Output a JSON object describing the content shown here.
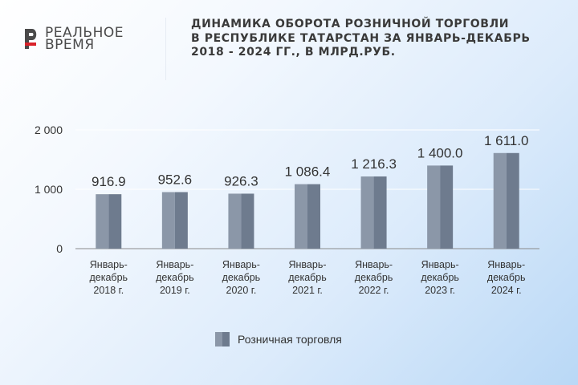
{
  "logo": {
    "line1": "РЕАЛЬНОЕ",
    "line2": "ВРЕМЯ"
  },
  "title_lines": [
    "Динамика оборота розничной торговли",
    "в Республике Татарстан за январь-декабрь",
    "2018 - 2024 гг., в млрд.руб."
  ],
  "colors": {
    "bar_light": "#8b97a8",
    "bar_dark": "#6e7b8e",
    "axis": "#8a8a8a",
    "grid": "#ffffff",
    "logo_red": "#d9222a"
  },
  "chart_data": {
    "type": "bar",
    "categories": [
      [
        "Январь-",
        "декабрь",
        "2018 г."
      ],
      [
        "Январь-",
        "декабрь",
        "2019 г."
      ],
      [
        "Январь-",
        "декабрь",
        "2020 г."
      ],
      [
        "Январь-",
        "декабрь",
        "2021 г."
      ],
      [
        "Январь-",
        "декабрь",
        "2022 г."
      ],
      [
        "Январь-",
        "декабрь",
        "2023 г."
      ],
      [
        "Январь-",
        "декабрь",
        "2024 г."
      ]
    ],
    "series": [
      {
        "name": "Розничная торговля",
        "values": [
          916.9,
          952.6,
          926.3,
          1086.4,
          1216.3,
          1400.0,
          1611.0
        ],
        "labels": [
          "916.9",
          "952.6",
          "926.3",
          "1 086.4",
          "1 216.3",
          "1 400.0",
          "1 611.0"
        ]
      }
    ],
    "yticks": [
      {
        "value": 0,
        "label": "0"
      },
      {
        "value": 1000,
        "label": "1 000"
      },
      {
        "value": 2000,
        "label": "2 000"
      }
    ],
    "ylim": [
      0,
      2000
    ],
    "grid": true,
    "legend_position": "bottom-center"
  }
}
